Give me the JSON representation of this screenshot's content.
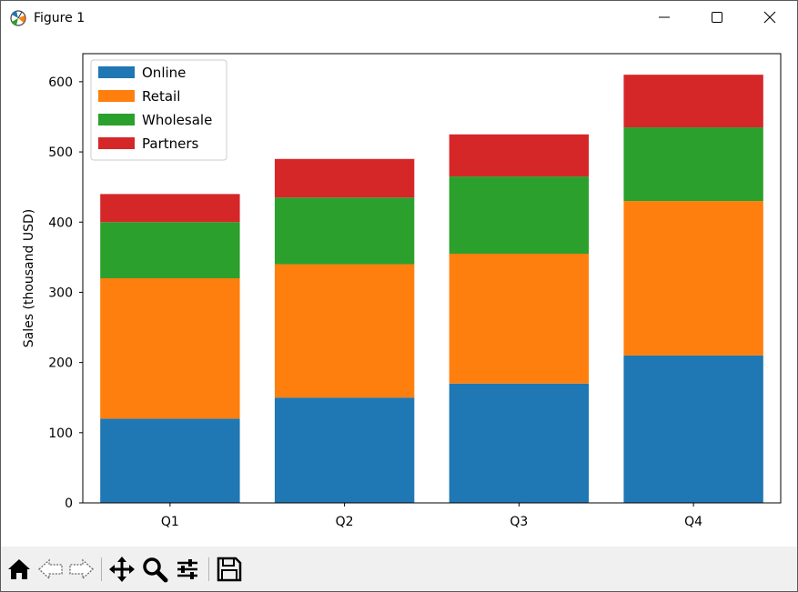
{
  "window": {
    "title": "Figure 1",
    "app_icon": "matplotlib-icon",
    "controls": [
      "minimize-icon",
      "maximize-icon",
      "close-icon"
    ]
  },
  "toolbar": {
    "tools": [
      "home-icon",
      "back-icon",
      "forward-icon",
      "pan-icon",
      "zoom-icon",
      "configure-subplots-icon",
      "save-icon"
    ]
  },
  "chart_data": {
    "type": "bar",
    "stacked": true,
    "categories": [
      "Q1",
      "Q2",
      "Q3",
      "Q4"
    ],
    "series": [
      {
        "name": "Online",
        "color": "#1f77b4",
        "values": [
          120,
          150,
          170,
          210
        ]
      },
      {
        "name": "Retail",
        "color": "#ff7f0e",
        "values": [
          200,
          190,
          185,
          220
        ]
      },
      {
        "name": "Wholesale",
        "color": "#2ca02c",
        "values": [
          80,
          95,
          110,
          105
        ]
      },
      {
        "name": "Partners",
        "color": "#d62728",
        "values": [
          40,
          55,
          60,
          75
        ]
      }
    ],
    "ylabel": "Sales (thousand USD)",
    "xlabel": "",
    "ylim": [
      0,
      640
    ],
    "yticks": [
      0,
      100,
      200,
      300,
      400,
      500,
      600
    ],
    "legend": "top-left",
    "grid": false
  }
}
